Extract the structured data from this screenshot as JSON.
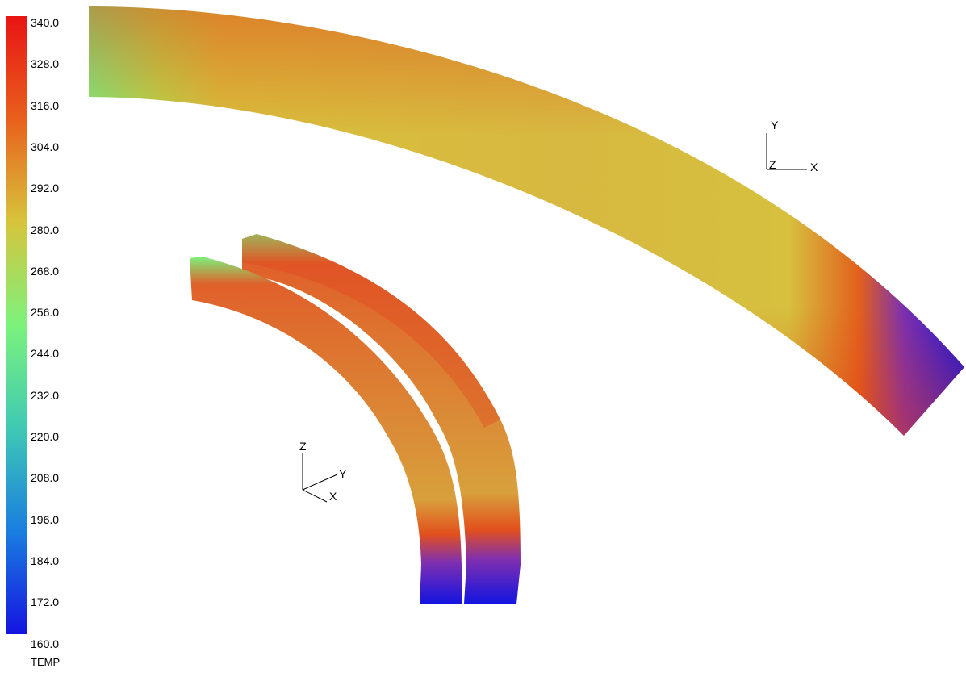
{
  "legend": {
    "title": "TEMP",
    "ticks": [
      "340.0",
      "328.0",
      "316.0",
      "304.0",
      "292.0",
      "280.0",
      "268.0",
      "256.0",
      "244.0",
      "232.0",
      "220.0",
      "208.0",
      "196.0",
      "184.0",
      "172.0",
      "160.0"
    ],
    "range": [
      160.0,
      340.0
    ],
    "colors": [
      "#e81414",
      "#e8601c",
      "#d7c43c",
      "#7cf27c",
      "#3ec9b4",
      "#1a7ee0",
      "#1414e0"
    ]
  },
  "triads": [
    {
      "axes": [
        "Y",
        "Z",
        "X"
      ]
    },
    {
      "axes": [
        "Z",
        "Y",
        "X"
      ]
    }
  ]
}
